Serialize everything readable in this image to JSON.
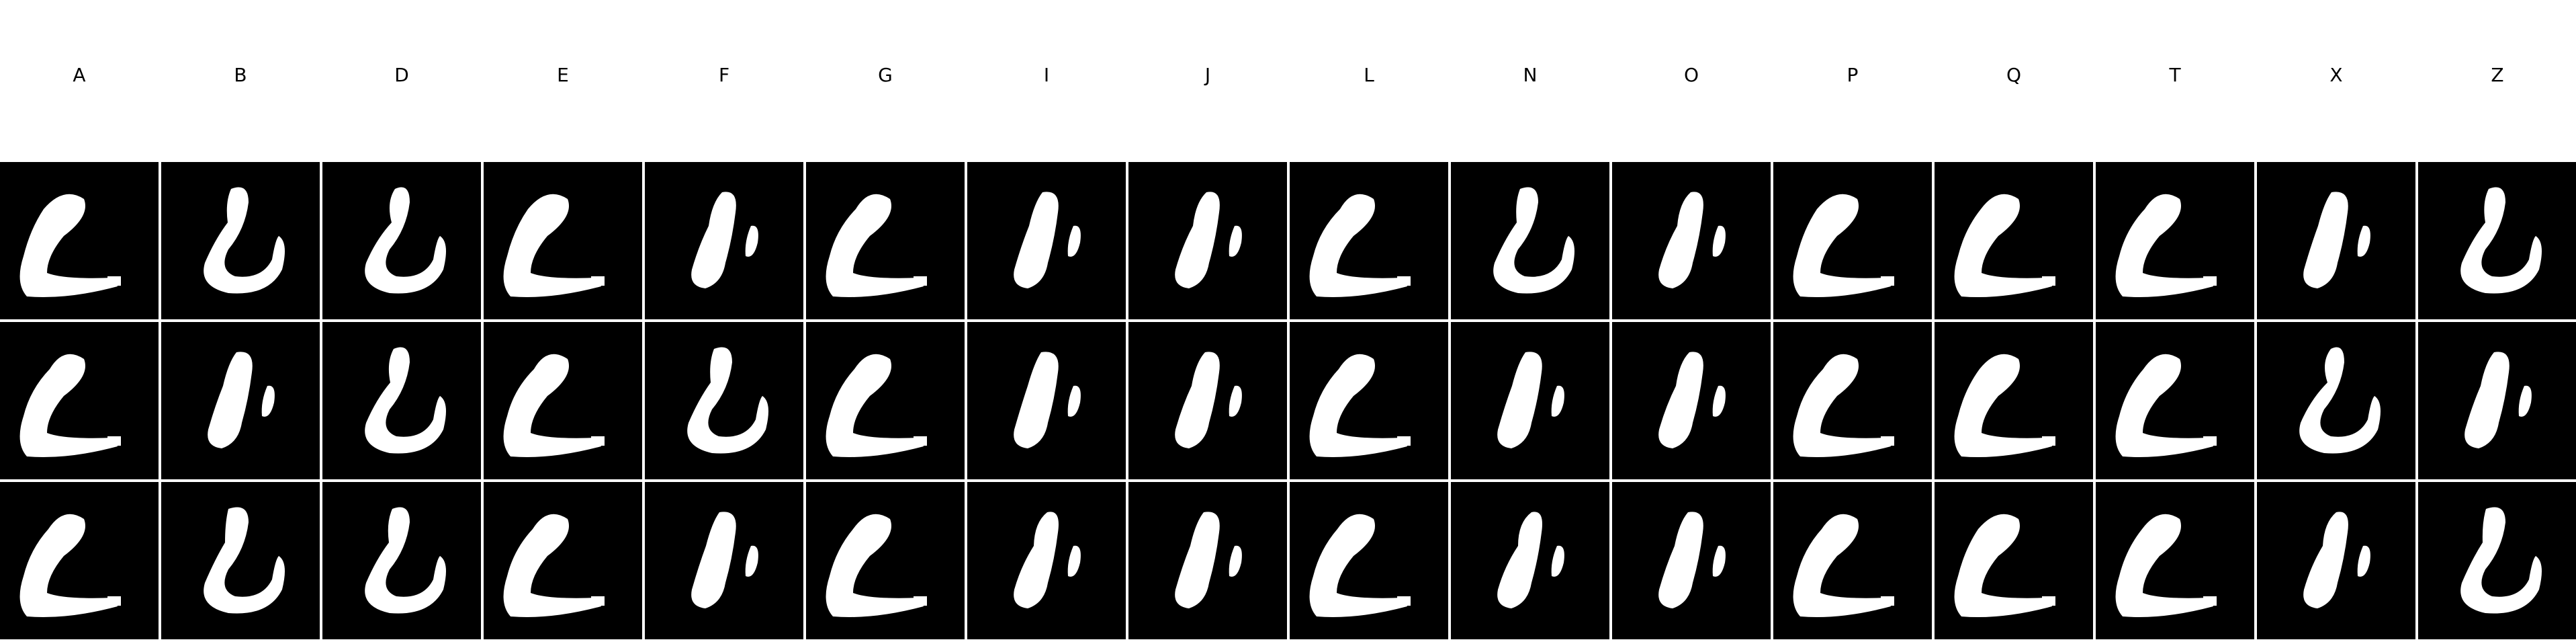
{
  "columns": [
    "A",
    "B",
    "D",
    "E",
    "F",
    "G",
    "I",
    "J",
    "L",
    "N",
    "O",
    "P",
    "Q",
    "T",
    "X",
    "Z"
  ],
  "rows": 3,
  "cell_background": "#000000",
  "glyph_color": "#ffffff",
  "grid_line_color": "#ffffff",
  "cell_shapes": [
    [
      "L",
      "U",
      "U",
      "L",
      "I",
      "L",
      "I",
      "I",
      "L",
      "U",
      "I",
      "L",
      "L",
      "L",
      "I",
      "U"
    ],
    [
      "L",
      "I",
      "U",
      "L",
      "U",
      "L",
      "I",
      "I",
      "L",
      "I",
      "I",
      "L",
      "L",
      "L",
      "U",
      "I"
    ],
    [
      "L",
      "U",
      "U",
      "L",
      "I",
      "L",
      "I",
      "I",
      "L",
      "I",
      "I",
      "L",
      "L",
      "L",
      "I",
      "U"
    ]
  ]
}
